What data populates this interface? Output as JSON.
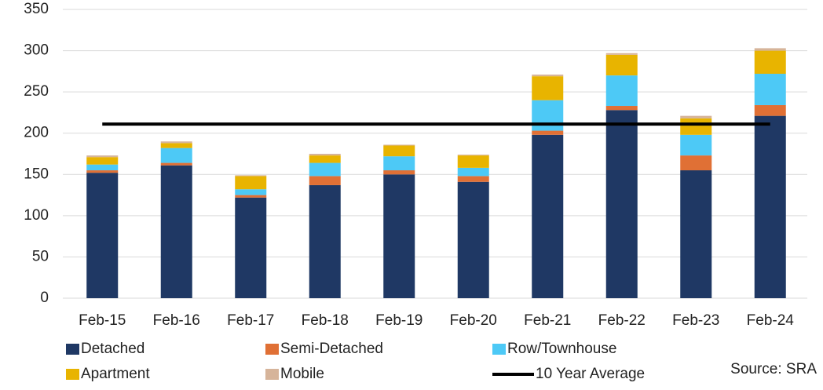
{
  "chart_data": {
    "type": "bar",
    "stacked": true,
    "categories": [
      "Feb-15",
      "Feb-16",
      "Feb-17",
      "Feb-18",
      "Feb-19",
      "Feb-20",
      "Feb-21",
      "Feb-22",
      "Feb-23",
      "Feb-24"
    ],
    "series": [
      {
        "name": "Detached",
        "color": "#1f3864",
        "values": [
          152,
          161,
          122,
          137,
          150,
          141,
          198,
          228,
          155,
          221
        ]
      },
      {
        "name": "Semi-Detached",
        "color": "#e07035",
        "values": [
          3,
          3,
          3,
          11,
          5,
          7,
          5,
          5,
          18,
          13
        ]
      },
      {
        "name": "Row/Townhouse",
        "color": "#4dc9f6",
        "values": [
          7,
          18,
          7,
          16,
          17,
          10,
          37,
          37,
          25,
          38
        ]
      },
      {
        "name": "Apartment",
        "color": "#e8b400",
        "values": [
          9,
          6,
          16,
          9,
          13,
          15,
          29,
          25,
          20,
          28
        ]
      },
      {
        "name": "Mobile",
        "color": "#d6b49a",
        "values": [
          2,
          2,
          1,
          2,
          1,
          1,
          2,
          2,
          3,
          3
        ]
      },
      {
        "name": "10 Year Average",
        "color": "#000000",
        "type": "line",
        "values": [
          211,
          211,
          211,
          211,
          211,
          211,
          211,
          211,
          211,
          211
        ]
      }
    ],
    "ylim": [
      0,
      350
    ],
    "yticks": [
      0,
      50,
      100,
      150,
      200,
      250,
      300,
      350
    ],
    "grid": true,
    "source": "Source: SRA"
  }
}
